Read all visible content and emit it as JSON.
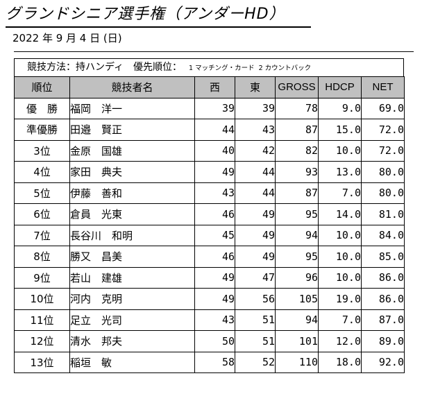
{
  "title": "グランドシニア選手権（アンダーHD）",
  "date": "2022 年 9 月 4 日 (日)",
  "method": {
    "label": "競技方法：持ハンディ　優先順位：",
    "priority_1": "1 マッチング・カード",
    "priority_2": "2 カウントバック"
  },
  "headers": {
    "rank": "順位",
    "name": "競技者名",
    "west": "西",
    "east": "東",
    "gross": "GROSS",
    "hdcp": "HDCP",
    "net": "NET"
  },
  "rows": [
    {
      "rank": "優　勝",
      "name": "福岡　洋一",
      "west": "39",
      "east": "39",
      "gross": "78",
      "hdcp": "9.0",
      "net": "69.0"
    },
    {
      "rank": "準優勝",
      "name": "田邉　賢正",
      "west": "44",
      "east": "43",
      "gross": "87",
      "hdcp": "15.0",
      "net": "72.0"
    },
    {
      "rank": "3位",
      "name": "金原　国雄",
      "west": "40",
      "east": "42",
      "gross": "82",
      "hdcp": "10.0",
      "net": "72.0"
    },
    {
      "rank": "4位",
      "name": "家田　典夫",
      "west": "49",
      "east": "44",
      "gross": "93",
      "hdcp": "13.0",
      "net": "80.0"
    },
    {
      "rank": "5位",
      "name": "伊藤　善和",
      "west": "43",
      "east": "44",
      "gross": "87",
      "hdcp": "7.0",
      "net": "80.0"
    },
    {
      "rank": "6位",
      "name": "倉員　光東",
      "west": "46",
      "east": "49",
      "gross": "95",
      "hdcp": "14.0",
      "net": "81.0"
    },
    {
      "rank": "7位",
      "name": "長谷川　和明",
      "west": "45",
      "east": "49",
      "gross": "94",
      "hdcp": "10.0",
      "net": "84.0"
    },
    {
      "rank": "8位",
      "name": "勝又　昌美",
      "west": "46",
      "east": "49",
      "gross": "95",
      "hdcp": "10.0",
      "net": "85.0"
    },
    {
      "rank": "9位",
      "name": "若山　建雄",
      "west": "49",
      "east": "47",
      "gross": "96",
      "hdcp": "10.0",
      "net": "86.0"
    },
    {
      "rank": "10位",
      "name": "河内　克明",
      "west": "49",
      "east": "56",
      "gross": "105",
      "hdcp": "19.0",
      "net": "86.0"
    },
    {
      "rank": "11位",
      "name": "足立　光司",
      "west": "43",
      "east": "51",
      "gross": "94",
      "hdcp": "7.0",
      "net": "87.0"
    },
    {
      "rank": "12位",
      "name": "清水　邦夫",
      "west": "50",
      "east": "51",
      "gross": "101",
      "hdcp": "12.0",
      "net": "89.0"
    },
    {
      "rank": "13位",
      "name": "稲垣　敏",
      "west": "58",
      "east": "52",
      "gross": "110",
      "hdcp": "18.0",
      "net": "92.0"
    }
  ]
}
